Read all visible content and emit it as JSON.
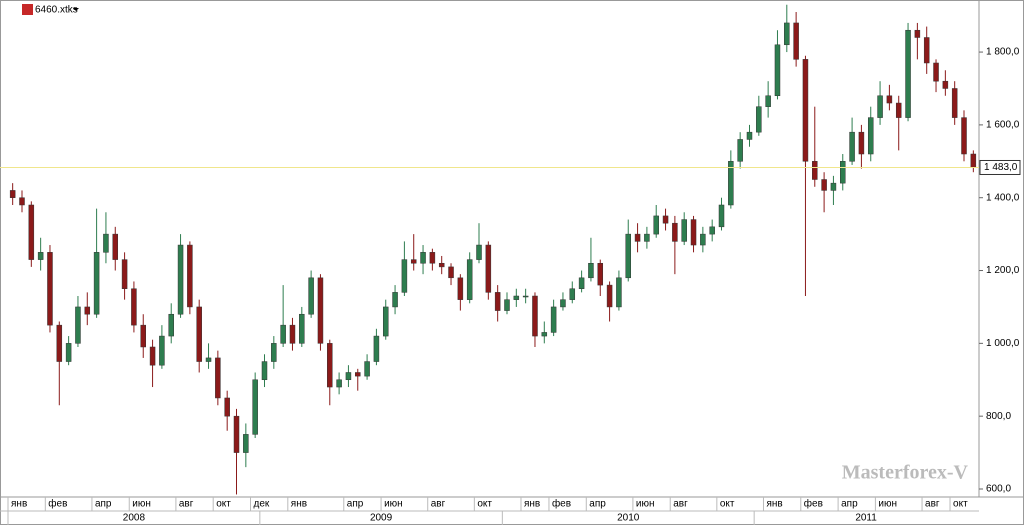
{
  "chart_data": {
    "type": "candlestick",
    "title": "6460.xtks",
    "watermark": "Masterforex-V",
    "up_color": "#2e7d4f",
    "down_color": "#8b1a1a",
    "candles": [
      [
        1420,
        1440,
        1380,
        1400
      ],
      [
        1400,
        1420,
        1360,
        1380
      ],
      [
        1380,
        1390,
        1210,
        1230
      ],
      [
        1230,
        1290,
        1200,
        1250
      ],
      [
        1250,
        1270,
        1030,
        1050
      ],
      [
        1050,
        1060,
        830,
        950
      ],
      [
        950,
        1020,
        940,
        1000
      ],
      [
        1000,
        1130,
        990,
        1100
      ],
      [
        1100,
        1140,
        1050,
        1080
      ],
      [
        1080,
        1370,
        1070,
        1250
      ],
      [
        1250,
        1360,
        1220,
        1300
      ],
      [
        1300,
        1320,
        1200,
        1230
      ],
      [
        1230,
        1250,
        1120,
        1150
      ],
      [
        1150,
        1170,
        1030,
        1050
      ],
      [
        1050,
        1080,
        960,
        990
      ],
      [
        990,
        1010,
        880,
        940
      ],
      [
        940,
        1050,
        930,
        1020
      ],
      [
        1020,
        1110,
        1000,
        1080
      ],
      [
        1080,
        1300,
        1070,
        1270
      ],
      [
        1270,
        1280,
        1080,
        1100
      ],
      [
        1100,
        1120,
        920,
        950
      ],
      [
        950,
        1000,
        930,
        960
      ],
      [
        960,
        980,
        830,
        850
      ],
      [
        850,
        870,
        760,
        800
      ],
      [
        800,
        820,
        585,
        700
      ],
      [
        700,
        780,
        660,
        750
      ],
      [
        750,
        920,
        740,
        900
      ],
      [
        900,
        970,
        880,
        950
      ],
      [
        950,
        1020,
        930,
        1000
      ],
      [
        1000,
        1160,
        990,
        1050
      ],
      [
        1050,
        1070,
        980,
        1000
      ],
      [
        1000,
        1100,
        990,
        1080
      ],
      [
        1080,
        1200,
        1070,
        1180
      ],
      [
        1180,
        1190,
        980,
        1000
      ],
      [
        1000,
        1010,
        830,
        880
      ],
      [
        880,
        920,
        860,
        900
      ],
      [
        900,
        940,
        880,
        920
      ],
      [
        920,
        930,
        870,
        910
      ],
      [
        910,
        970,
        900,
        950
      ],
      [
        950,
        1040,
        940,
        1020
      ],
      [
        1020,
        1120,
        1010,
        1100
      ],
      [
        1100,
        1160,
        1080,
        1140
      ],
      [
        1140,
        1280,
        1130,
        1230
      ],
      [
        1230,
        1300,
        1200,
        1220
      ],
      [
        1220,
        1270,
        1190,
        1250
      ],
      [
        1250,
        1260,
        1200,
        1220
      ],
      [
        1220,
        1240,
        1190,
        1210
      ],
      [
        1210,
        1220,
        1160,
        1180
      ],
      [
        1180,
        1190,
        1090,
        1120
      ],
      [
        1120,
        1250,
        1110,
        1230
      ],
      [
        1230,
        1330,
        1220,
        1270
      ],
      [
        1270,
        1280,
        1120,
        1140
      ],
      [
        1140,
        1160,
        1060,
        1090
      ],
      [
        1090,
        1140,
        1080,
        1120
      ],
      [
        1120,
        1150,
        1100,
        1130
      ],
      [
        1130,
        1150,
        1110,
        1130
      ],
      [
        1130,
        1140,
        990,
        1020
      ],
      [
        1020,
        1060,
        1000,
        1030
      ],
      [
        1030,
        1120,
        1020,
        1100
      ],
      [
        1100,
        1140,
        1090,
        1120
      ],
      [
        1120,
        1170,
        1110,
        1150
      ],
      [
        1150,
        1200,
        1140,
        1180
      ],
      [
        1180,
        1290,
        1170,
        1220
      ],
      [
        1220,
        1230,
        1130,
        1160
      ],
      [
        1160,
        1170,
        1060,
        1100
      ],
      [
        1100,
        1200,
        1090,
        1180
      ],
      [
        1180,
        1340,
        1170,
        1300
      ],
      [
        1300,
        1330,
        1250,
        1280
      ],
      [
        1280,
        1320,
        1260,
        1300
      ],
      [
        1300,
        1380,
        1290,
        1350
      ],
      [
        1350,
        1370,
        1310,
        1330
      ],
      [
        1330,
        1350,
        1190,
        1280
      ],
      [
        1280,
        1360,
        1270,
        1340
      ],
      [
        1340,
        1350,
        1250,
        1270
      ],
      [
        1270,
        1320,
        1250,
        1300
      ],
      [
        1300,
        1340,
        1280,
        1320
      ],
      [
        1320,
        1400,
        1310,
        1380
      ],
      [
        1380,
        1530,
        1370,
        1500
      ],
      [
        1500,
        1580,
        1480,
        1560
      ],
      [
        1560,
        1600,
        1540,
        1580
      ],
      [
        1580,
        1680,
        1570,
        1650
      ],
      [
        1650,
        1720,
        1620,
        1680
      ],
      [
        1680,
        1860,
        1670,
        1820
      ],
      [
        1820,
        1930,
        1800,
        1880
      ],
      [
        1880,
        1910,
        1760,
        1780
      ],
      [
        1780,
        1790,
        1130,
        1500
      ],
      [
        1500,
        1650,
        1430,
        1450
      ],
      [
        1450,
        1470,
        1360,
        1420
      ],
      [
        1420,
        1460,
        1380,
        1440
      ],
      [
        1440,
        1520,
        1420,
        1500
      ],
      [
        1500,
        1620,
        1490,
        1580
      ],
      [
        1580,
        1600,
        1480,
        1520
      ],
      [
        1520,
        1650,
        1500,
        1620
      ],
      [
        1620,
        1720,
        1600,
        1680
      ],
      [
        1680,
        1710,
        1640,
        1660
      ],
      [
        1660,
        1680,
        1530,
        1620
      ],
      [
        1620,
        1880,
        1610,
        1860
      ],
      [
        1860,
        1880,
        1780,
        1840
      ],
      [
        1840,
        1870,
        1740,
        1770
      ],
      [
        1770,
        1780,
        1690,
        1720
      ],
      [
        1720,
        1750,
        1680,
        1700
      ],
      [
        1700,
        1720,
        1600,
        1620
      ],
      [
        1620,
        1640,
        1500,
        1520
      ],
      [
        1520,
        1530,
        1470,
        1483
      ]
    ],
    "xticks": [
      {
        "value": 0,
        "label": "янв"
      },
      {
        "value": 4,
        "label": "фев"
      },
      {
        "value": 9,
        "label": "апр"
      },
      {
        "value": 13,
        "label": "июн"
      },
      {
        "value": 18,
        "label": "авг"
      },
      {
        "value": 22,
        "label": "окт"
      },
      {
        "value": 26,
        "label": "дек"
      },
      {
        "value": 30,
        "label": "янв"
      },
      {
        "value": 36,
        "label": "апр"
      },
      {
        "value": 40,
        "label": "июн"
      },
      {
        "value": 45,
        "label": "авг"
      },
      {
        "value": 50,
        "label": "окт"
      },
      {
        "value": 55,
        "label": "янв"
      },
      {
        "value": 58,
        "label": "фев"
      },
      {
        "value": 62,
        "label": "апр"
      },
      {
        "value": 67,
        "label": "июн"
      },
      {
        "value": 71,
        "label": "авг"
      },
      {
        "value": 76,
        "label": "окт"
      },
      {
        "value": 81,
        "label": "янв"
      },
      {
        "value": 85,
        "label": "фев"
      },
      {
        "value": 89,
        "label": "апр"
      },
      {
        "value": 93,
        "label": "июн"
      },
      {
        "value": 98,
        "label": "авг"
      },
      {
        "value": 101,
        "label": "окт"
      }
    ],
    "year_ticks": [
      {
        "value": 0,
        "label": "2008"
      },
      {
        "value": 27,
        "label": "2009"
      },
      {
        "value": 53,
        "label": "2010"
      },
      {
        "value": 80,
        "label": "2011"
      }
    ],
    "ylim": [
      578,
      1943
    ],
    "yticks": [
      {
        "value": 600,
        "label": "600,0"
      },
      {
        "value": 800,
        "label": "800,0"
      },
      {
        "value": 1000,
        "label": "1 000,0"
      },
      {
        "value": 1200,
        "label": "1 200,0"
      },
      {
        "value": 1400,
        "label": "1 400,0"
      },
      {
        "value": 1600,
        "label": "1 600,0"
      },
      {
        "value": 1800,
        "label": "1 800,0"
      }
    ],
    "last_price": {
      "value": 1483,
      "label": "1 483,0"
    }
  }
}
